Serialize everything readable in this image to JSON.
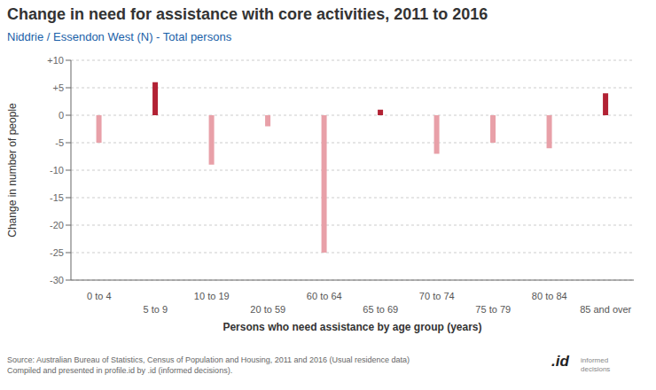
{
  "chart_data": {
    "type": "bar",
    "title": "Change in need for assistance with core activities, 2011 to 2016",
    "subtitle": "Niddrie / Essendon West (N) - Total persons",
    "xlabel": "Persons who need assistance by age group (years)",
    "ylabel": "Change in number of people",
    "categories": [
      "0 to 4",
      "5 to 9",
      "10 to 19",
      "20 to 59",
      "60 to 64",
      "65 to 69",
      "70 to 74",
      "75 to 79",
      "80 to 84",
      "85 and over"
    ],
    "values": [
      -5,
      6,
      -9,
      -2,
      -25,
      1,
      -7,
      -5,
      -6,
      4
    ],
    "colors": [
      "#e8a0a8",
      "#b22234",
      "#e8a0a8",
      "#e8a0a8",
      "#e8a0a8",
      "#b22234",
      "#e8a0a8",
      "#e8a0a8",
      "#e8a0a8",
      "#b22234"
    ],
    "ylim": [
      -30,
      10
    ],
    "yticks": [
      -30,
      -25,
      -20,
      -15,
      -10,
      -5,
      0,
      {
        "value": 5,
        "label": "+5"
      },
      {
        "value": 10,
        "label": "+10"
      }
    ],
    "grid": true,
    "source": "Source: Australian Bureau of Statistics, Census of Population and Housing, 2011 and 2016 (Usual residence data)\nCompiled and presented in profile.id by .id (informed decisions).",
    "annotations": [
      ".id",
      "informed\ndecisions"
    ]
  }
}
